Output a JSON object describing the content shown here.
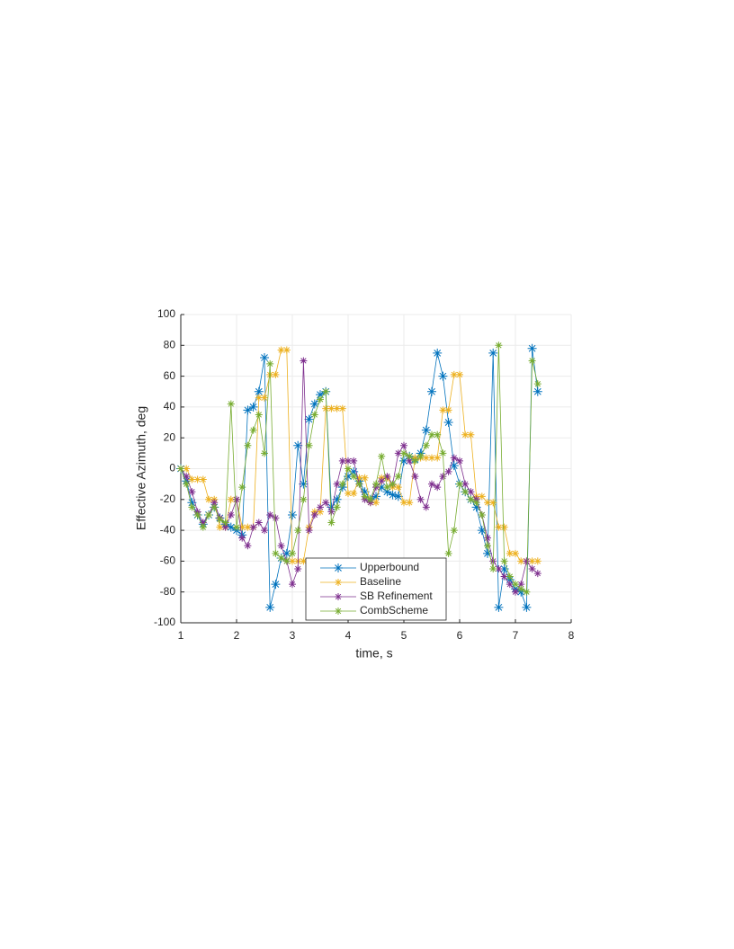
{
  "chart_data": {
    "type": "line",
    "xlabel": "time, s",
    "ylabel": "Effective Azimuth, deg",
    "x": [
      1,
      1.1,
      1.2,
      1.3,
      1.4,
      1.5,
      1.6,
      1.7,
      1.8,
      1.9,
      2,
      2.1,
      2.2,
      2.3,
      2.4,
      2.5,
      2.6,
      2.7,
      2.8,
      2.9,
      3,
      3.1,
      3.2,
      3.3,
      3.4,
      3.5,
      3.6,
      3.7,
      3.8,
      3.9,
      4,
      4.1,
      4.2,
      4.3,
      4.4,
      4.5,
      4.6,
      4.7,
      4.8,
      4.9,
      5,
      5.1,
      5.2,
      5.3,
      5.4,
      5.5,
      5.6,
      5.7,
      5.8,
      5.9,
      6,
      6.1,
      6.2,
      6.3,
      6.4,
      6.5,
      6.6,
      6.7,
      6.8,
      6.9,
      7,
      7.1,
      7.2,
      7.3,
      7.4
    ],
    "series": [
      {
        "name": "Upperbound",
        "color": "#0072bd",
        "values": [
          0,
          -8,
          -22,
          -30,
          -36,
          -30,
          -25,
          -32,
          -36,
          -38,
          -40,
          -43,
          38,
          40,
          50,
          72,
          -90,
          -75,
          -58,
          -55,
          -30,
          15,
          -10,
          32,
          42,
          48,
          50,
          -25,
          -20,
          -12,
          -5,
          -2,
          -8,
          -15,
          -20,
          -18,
          -12,
          -15,
          -17,
          -18,
          5,
          8,
          6,
          10,
          25,
          50,
          75,
          60,
          30,
          2,
          -10,
          -15,
          -20,
          -25,
          -40,
          -55,
          75,
          -90,
          -65,
          -72,
          -78,
          -80,
          -90,
          78,
          50
        ]
      },
      {
        "name": "Baseline",
        "color": "#edb120",
        "values": [
          0,
          0,
          -7,
          -7,
          -7,
          -20,
          -20,
          -38,
          -38,
          -20,
          -20,
          -38,
          -38,
          -38,
          46,
          46,
          61,
          61,
          77,
          77,
          -60,
          -60,
          -60,
          -38,
          -28,
          -28,
          39,
          39,
          39,
          39,
          -16,
          -16,
          -6,
          -6,
          -22,
          -22,
          -6,
          -6,
          -12,
          -12,
          -22,
          -22,
          7,
          7,
          7,
          7,
          7,
          38,
          38,
          61,
          61,
          22,
          22,
          -18,
          -18,
          -22,
          -22,
          -38,
          -38,
          -55,
          -55,
          -60,
          -60,
          -60,
          -60
        ]
      },
      {
        "name": "SB Refinement",
        "color": "#7e2f8e",
        "values": [
          0,
          -5,
          -15,
          -28,
          -35,
          -30,
          -22,
          -32,
          -38,
          -30,
          -20,
          -45,
          -50,
          -38,
          -35,
          -40,
          -30,
          -32,
          -50,
          -60,
          -75,
          -65,
          70,
          -40,
          -30,
          -25,
          -22,
          -28,
          -10,
          5,
          5,
          5,
          -10,
          -20,
          -22,
          -12,
          -8,
          -5,
          -10,
          10,
          15,
          5,
          -5,
          -20,
          -25,
          -10,
          -12,
          -5,
          -2,
          7,
          5,
          -10,
          -15,
          -20,
          -30,
          -45,
          -60,
          -65,
          -70,
          -75,
          -80,
          -75,
          -60,
          -65,
          -68
        ]
      },
      {
        "name": "CombScheme",
        "color": "#77ac30",
        "values": [
          0,
          -10,
          -25,
          -30,
          -38,
          -30,
          -25,
          -33,
          -35,
          42,
          -38,
          -12,
          15,
          25,
          35,
          10,
          68,
          -55,
          -58,
          -60,
          -55,
          -40,
          -20,
          15,
          35,
          45,
          50,
          -35,
          -25,
          -10,
          0,
          -5,
          -10,
          -18,
          -20,
          -10,
          8,
          -12,
          -10,
          -5,
          10,
          8,
          5,
          8,
          15,
          22,
          22,
          10,
          -55,
          -40,
          -10,
          -15,
          -20,
          -22,
          -30,
          -50,
          -65,
          80,
          -60,
          -70,
          -75,
          -78,
          -80,
          70,
          55
        ]
      }
    ],
    "xlim": [
      1,
      8
    ],
    "xticks": [
      1,
      2,
      3,
      4,
      5,
      6,
      7,
      8
    ],
    "ylim": [
      -100,
      100
    ],
    "yticks": [
      -100,
      -80,
      -60,
      -40,
      -20,
      0,
      20,
      40,
      60,
      80,
      100
    ],
    "grid": true,
    "legend": "south"
  }
}
